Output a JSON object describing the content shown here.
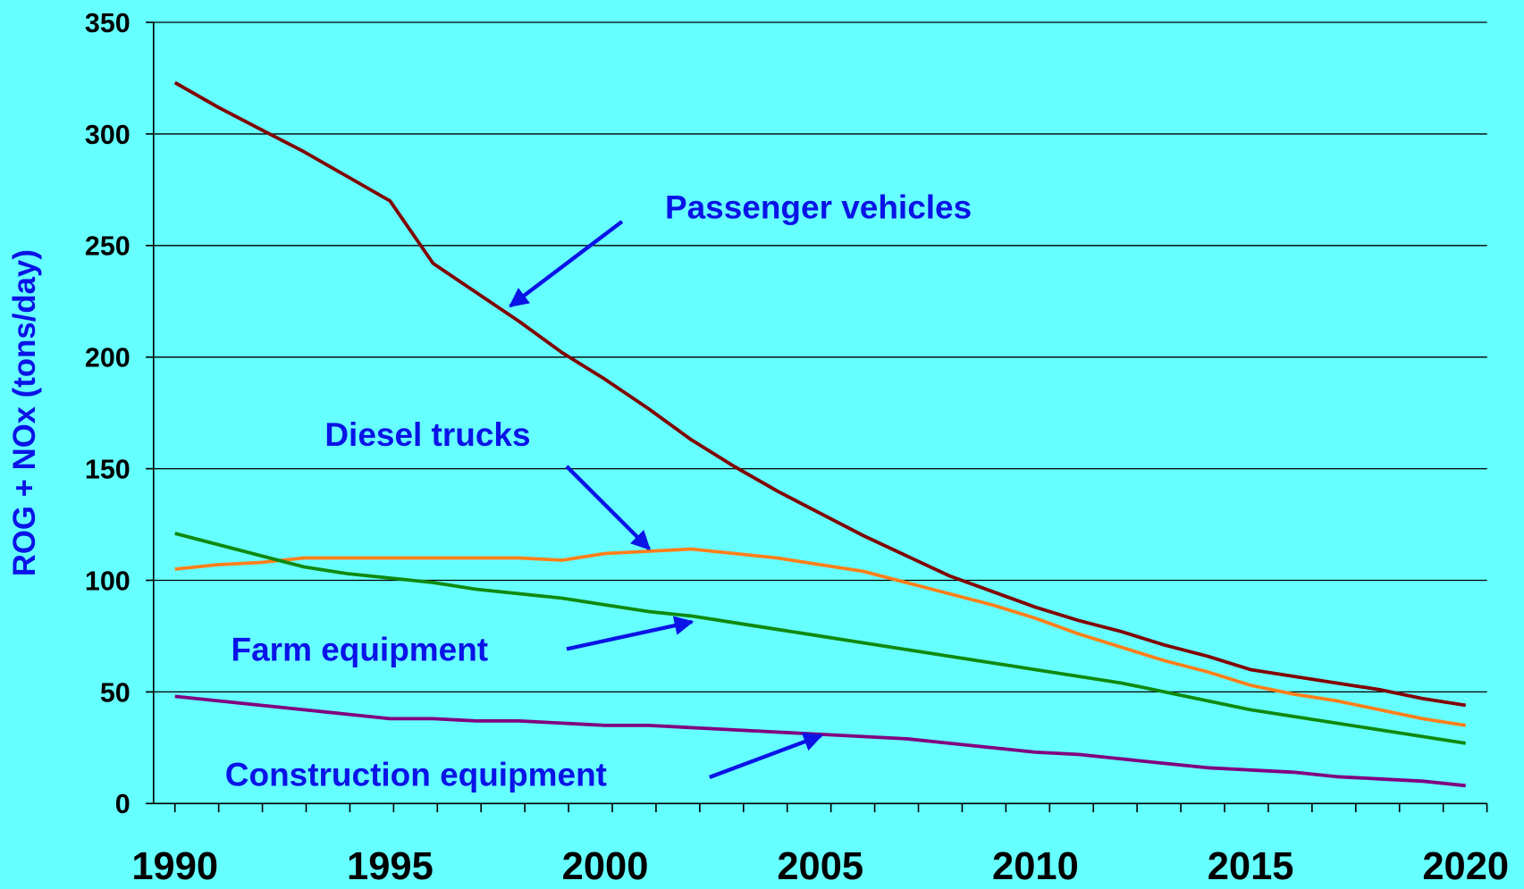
{
  "chart_data": {
    "type": "line",
    "ylabel": "ROG + NOx (tons/day)",
    "x": [
      1990,
      1991,
      1992,
      1993,
      1994,
      1995,
      1996,
      1997,
      1998,
      1999,
      2000,
      2001,
      2002,
      2003,
      2004,
      2005,
      2006,
      2007,
      2008,
      2009,
      2010,
      2011,
      2012,
      2013,
      2014,
      2015,
      2016,
      2017,
      2018,
      2019,
      2020
    ],
    "series": [
      {
        "name": "Passenger vehicles",
        "color": "#800000",
        "values": [
          323,
          312,
          302,
          292,
          281,
          270,
          242,
          229,
          216,
          202,
          190,
          177,
          163,
          151,
          140,
          130,
          120,
          111,
          102,
          95,
          88,
          82,
          77,
          71,
          66,
          60,
          57,
          54,
          51,
          47,
          44
        ]
      },
      {
        "name": "Diesel trucks",
        "color": "#ff7f1a",
        "values": [
          105,
          107,
          108,
          110,
          110,
          110,
          110,
          110,
          110,
          109,
          112,
          113,
          114,
          112,
          110,
          107,
          104,
          99,
          94,
          89,
          83,
          76,
          70,
          64,
          59,
          53,
          49,
          46,
          42,
          38,
          35
        ]
      },
      {
        "name": "Farm equipment",
        "color": "#0f8a0f",
        "values": [
          121,
          116,
          111,
          106,
          103,
          101,
          99,
          96,
          94,
          92,
          89,
          86,
          84,
          81,
          78,
          75,
          72,
          69,
          66,
          63,
          60,
          57,
          54,
          50,
          46,
          42,
          39,
          36,
          33,
          30,
          27
        ]
      },
      {
        "name": "Construction equipment",
        "color": "#800080",
        "values": [
          48,
          46,
          44,
          42,
          40,
          38,
          38,
          37,
          37,
          36,
          35,
          35,
          34,
          33,
          32,
          31,
          30,
          29,
          27,
          25,
          23,
          22,
          20,
          18,
          16,
          15,
          14,
          12,
          11,
          10,
          8
        ]
      }
    ],
    "xlim": [
      1990,
      2020
    ],
    "xticks": [
      1990,
      1995,
      2000,
      2005,
      2010,
      2015,
      2020
    ],
    "ylim": [
      0,
      350
    ],
    "yticks": [
      0,
      50,
      100,
      150,
      200,
      250,
      300,
      350
    ],
    "grid": true,
    "label_color": "#0a14e6"
  }
}
